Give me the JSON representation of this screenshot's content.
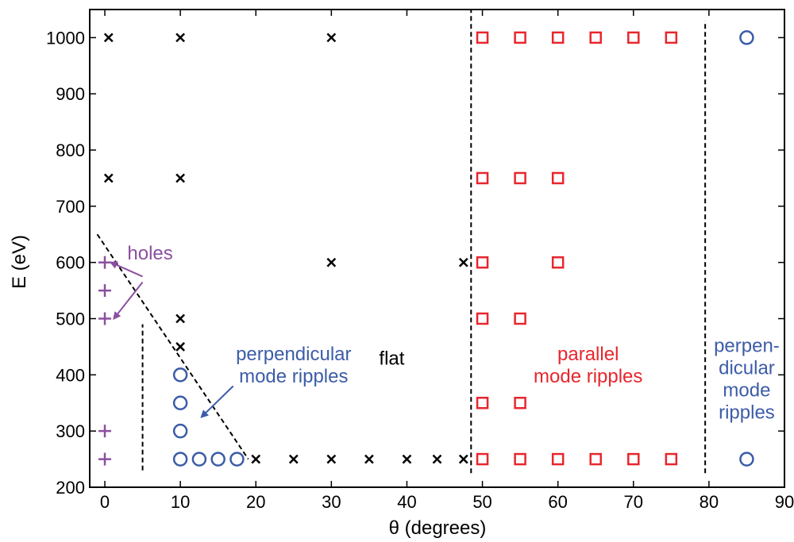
{
  "chart_data": {
    "type": "scatter",
    "xlabel": "θ (degrees)",
    "ylabel": "E  (eV)",
    "xlim": [
      -2,
      90
    ],
    "ylim": [
      200,
      1050
    ],
    "xticks": [
      0,
      10,
      20,
      30,
      40,
      50,
      60,
      70,
      80,
      90
    ],
    "yticks": [
      200,
      300,
      400,
      500,
      600,
      700,
      800,
      900,
      1000
    ],
    "grid": false,
    "colors": {
      "black": "#000000",
      "red": "#e8262d",
      "blue": "#3c5ca8",
      "purple": "#8c4fa0"
    },
    "series": [
      {
        "marker": "plus",
        "color": "#8c4fa0",
        "points": [
          [
            0,
            250
          ],
          [
            0,
            300
          ],
          [
            0,
            500
          ],
          [
            0,
            550
          ],
          [
            0,
            600
          ]
        ]
      },
      {
        "marker": "x",
        "color": "#000000",
        "points": [
          [
            0.5,
            750
          ],
          [
            0.5,
            1000
          ],
          [
            10,
            450
          ],
          [
            10,
            500
          ],
          [
            10,
            750
          ],
          [
            10,
            1000
          ],
          [
            20,
            250
          ],
          [
            25,
            250
          ],
          [
            30,
            250
          ],
          [
            35,
            250
          ],
          [
            40,
            250
          ],
          [
            44,
            250
          ],
          [
            47.5,
            250
          ],
          [
            30,
            600
          ],
          [
            30,
            1000
          ],
          [
            47.5,
            600
          ]
        ]
      },
      {
        "marker": "circle",
        "color": "#3c5ca8",
        "points": [
          [
            10,
            250
          ],
          [
            10,
            300
          ],
          [
            10,
            350
          ],
          [
            10,
            400
          ],
          [
            12.5,
            250
          ],
          [
            15,
            250
          ],
          [
            17.5,
            250
          ],
          [
            85,
            250
          ],
          [
            85,
            1000
          ]
        ]
      },
      {
        "marker": "square",
        "color": "#e8262d",
        "points": [
          [
            50,
            250
          ],
          [
            55,
            250
          ],
          [
            60,
            250
          ],
          [
            65,
            250
          ],
          [
            70,
            250
          ],
          [
            75,
            250
          ],
          [
            50,
            350
          ],
          [
            55,
            350
          ],
          [
            50,
            500
          ],
          [
            55,
            500
          ],
          [
            50,
            600
          ],
          [
            60,
            600
          ],
          [
            50,
            750
          ],
          [
            55,
            750
          ],
          [
            60,
            750
          ],
          [
            50,
            1000
          ],
          [
            55,
            1000
          ],
          [
            60,
            1000
          ],
          [
            65,
            1000
          ],
          [
            70,
            1000
          ],
          [
            75,
            1000
          ]
        ]
      }
    ],
    "boundary_lines": [
      {
        "style": "dashed",
        "from": [
          48.5,
          225
        ],
        "to": [
          48.5,
          1050
        ]
      },
      {
        "style": "dashed",
        "from": [
          79.5,
          225
        ],
        "to": [
          79.5,
          1030
        ]
      },
      {
        "style": "dashed",
        "from": [
          5,
          230
        ],
        "to": [
          5,
          490
        ]
      },
      {
        "style": "dashed",
        "from": [
          -1,
          650
        ],
        "to": [
          19,
          250
        ]
      }
    ],
    "annotations": [
      {
        "id": "holes",
        "lines": [
          "holes"
        ],
        "color": "#8c4fa0",
        "at": [
          6,
          605
        ],
        "anchor": "middle",
        "arrows": [
          {
            "from": [
              5,
              575
            ],
            "to": [
              0.8,
              600
            ]
          },
          {
            "from": [
              5,
              565
            ],
            "to": [
              1.2,
              500
            ]
          }
        ]
      },
      {
        "id": "perpendicular-left",
        "lines": [
          "perpendicular",
          "mode ripples"
        ],
        "color": "#3c5ca8",
        "at": [
          25,
          426
        ],
        "anchor": "middle",
        "arrows": [
          {
            "from": [
              17,
              380
            ],
            "to": [
              12.8,
              325
            ]
          }
        ]
      },
      {
        "id": "flat",
        "lines": [
          "flat"
        ],
        "color": "#000000",
        "at": [
          38,
          418
        ],
        "anchor": "middle",
        "arrows": []
      },
      {
        "id": "parallel",
        "lines": [
          "parallel",
          "mode ripples"
        ],
        "color": "#e8262d",
        "at": [
          64,
          426
        ],
        "anchor": "middle",
        "arrows": []
      },
      {
        "id": "perpendicular-right",
        "lines": [
          "perpen-",
          "dicular",
          "mode",
          "ripples"
        ],
        "color": "#3c5ca8",
        "at": [
          85,
          441
        ],
        "anchor": "middle",
        "arrows": []
      }
    ]
  }
}
